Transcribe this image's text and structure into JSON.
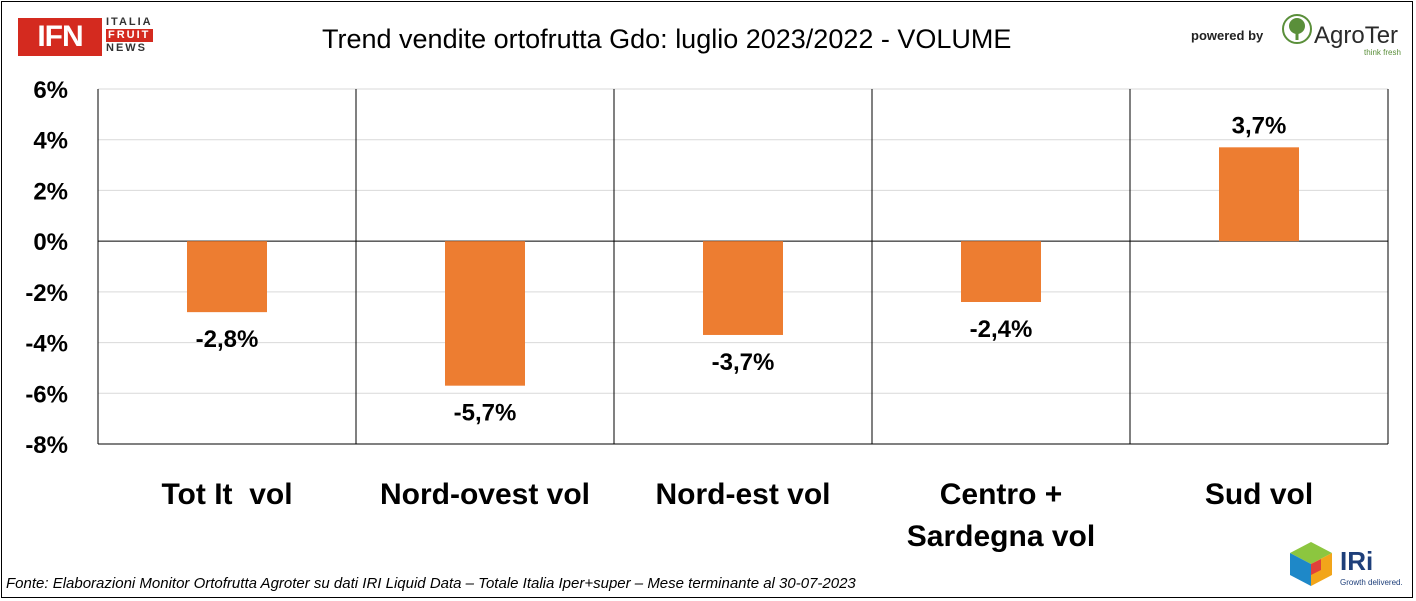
{
  "header": {
    "title": "Trend vendite ortofrutta Gdo: luglio 2023/2022 - VOLUME",
    "ifn_logo_text": "IFN",
    "ifn_sub": [
      "ITALIA",
      "FRUIT",
      "NEWS"
    ],
    "powered_by": "powered by",
    "agroter_name": "AgroTer",
    "agroter_tagline": "think fresh"
  },
  "footer": {
    "source": "Fonte: Elaborazioni Monitor Ortofrutta Agroter su dati IRI Liquid Data – Totale Italia Iper+super – Mese terminante al 30-07-2023",
    "iri_name": "IRi",
    "iri_tagline": "Growth delivered."
  },
  "colors": {
    "bar": "#ed7d31",
    "ifn_red": "#d42a1f",
    "agroter_green": "#5a8f3a",
    "iri_blue": "#1e3f7a"
  },
  "chart_data": {
    "type": "bar",
    "title": "Trend vendite ortofrutta Gdo: luglio 2023/2022 - VOLUME",
    "categories": [
      "Tot It  vol",
      "Nord-ovest vol",
      "Nord-est vol",
      "Centro + Sardegna vol",
      "Sud vol"
    ],
    "category_lines": [
      [
        "Tot It  vol"
      ],
      [
        "Nord-ovest vol"
      ],
      [
        "Nord-est vol"
      ],
      [
        "Centro +",
        "Sardegna vol"
      ],
      [
        "Sud vol"
      ]
    ],
    "values": [
      -2.8,
      -5.7,
      -3.7,
      -2.4,
      3.7
    ],
    "data_labels": [
      "-2,8%",
      "-5,7%",
      "-3,7%",
      "-2,4%",
      "3,7%"
    ],
    "yticks": [
      6,
      4,
      2,
      0,
      -2,
      -4,
      -6,
      -8
    ],
    "ytick_labels": [
      "6%",
      "4%",
      "2%",
      "0%",
      "-2%",
      "-4%",
      "-6%",
      "-8%"
    ],
    "ylim": [
      -8,
      6
    ],
    "grid": true,
    "xlabel": "",
    "ylabel": ""
  }
}
